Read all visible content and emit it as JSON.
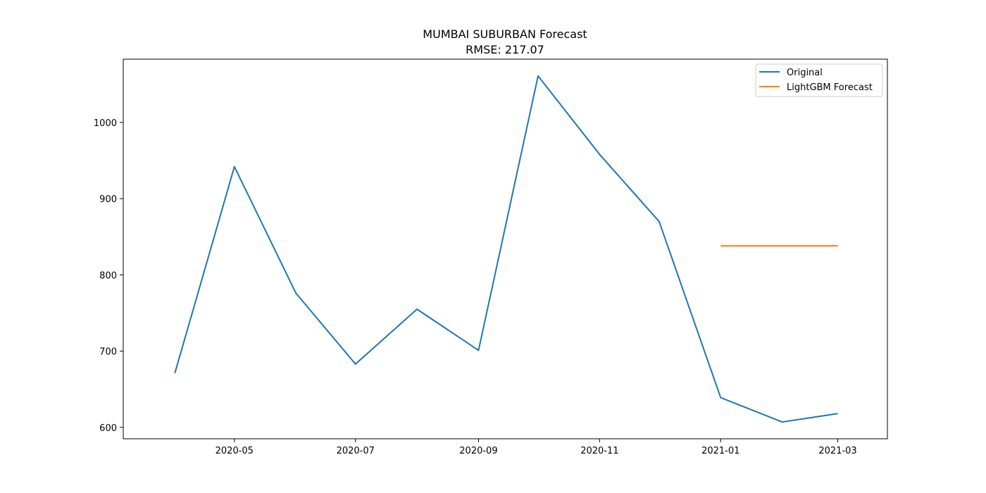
{
  "chart_data": {
    "type": "line",
    "title": "MUMBAI SUBURBAN Forecast",
    "subtitle": "RMSE: 217.07",
    "xlabel": "",
    "ylabel": "",
    "x_axis_type": "date",
    "xlim": [
      "2020-03-06",
      "2021-03-26"
    ],
    "ylim": [
      585,
      1083
    ],
    "x_ticks": [
      "2020-05",
      "2020-07",
      "2020-09",
      "2020-11",
      "2021-01",
      "2021-03"
    ],
    "y_ticks": [
      600,
      700,
      800,
      900,
      1000
    ],
    "grid": false,
    "legend_position": "top-right",
    "series": [
      {
        "name": "Original",
        "color": "#1f77b4",
        "x": [
          "2020-04-01",
          "2020-05-01",
          "2020-06-01",
          "2020-07-01",
          "2020-08-01",
          "2020-09-01",
          "2020-10-01",
          "2020-11-01",
          "2020-12-01",
          "2021-01-01",
          "2021-02-01",
          "2021-03-01"
        ],
        "values": [
          671,
          942,
          776,
          683,
          755,
          701,
          1061,
          958,
          870,
          639,
          607,
          618
        ]
      },
      {
        "name": "LightGBM Forecast",
        "color": "#ff7f0e",
        "x": [
          "2021-01-01",
          "2021-02-01",
          "2021-03-01"
        ],
        "values": [
          838,
          838,
          838
        ]
      }
    ]
  }
}
